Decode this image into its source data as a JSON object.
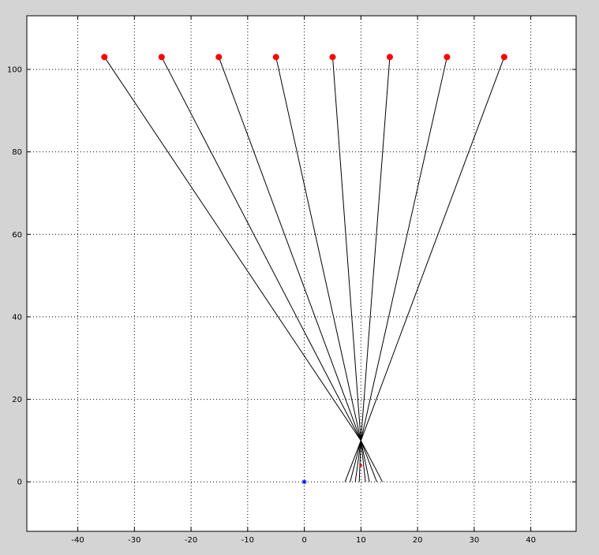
{
  "chart_data": {
    "type": "line",
    "title": "",
    "xlabel": "",
    "ylabel": "",
    "xlim": [
      -49,
      48
    ],
    "ylim": [
      -12,
      113
    ],
    "grid": true,
    "xticks": [
      -40,
      -30,
      -20,
      -10,
      0,
      10,
      20,
      30,
      40
    ],
    "yticks": [
      0,
      20,
      40,
      60,
      80,
      100
    ],
    "xtick_labels": [
      "-40",
      "-30",
      "-20",
      "-10",
      "0",
      "10",
      "20",
      "30",
      "40"
    ],
    "ytick_labels": [
      "0",
      "20",
      "40",
      "60",
      "80",
      "100"
    ],
    "series": [
      {
        "points": [
          [
            -35.3,
            103
          ],
          [
            10,
            10
          ],
          [
            13.8,
            0
          ]
        ]
      },
      {
        "points": [
          [
            -25.2,
            103
          ],
          [
            10,
            10
          ],
          [
            12.8,
            0
          ]
        ]
      },
      {
        "points": [
          [
            -15.1,
            103
          ],
          [
            10,
            10
          ],
          [
            11.5,
            0
          ]
        ]
      },
      {
        "points": [
          [
            -5.0,
            103
          ],
          [
            10,
            10
          ],
          [
            10.8,
            0
          ]
        ]
      },
      {
        "points": [
          [
            5.0,
            103
          ],
          [
            10,
            10
          ],
          [
            9.7,
            0
          ]
        ]
      },
      {
        "points": [
          [
            15.1,
            103
          ],
          [
            10,
            10
          ],
          [
            9.0,
            0
          ]
        ]
      },
      {
        "points": [
          [
            25.2,
            103
          ],
          [
            10,
            10
          ],
          [
            8.1,
            0
          ]
        ]
      },
      {
        "points": [
          [
            35.3,
            103
          ],
          [
            10,
            10
          ],
          [
            7.2,
            0
          ]
        ]
      }
    ],
    "source_markers": {
      "color": "#ff0000",
      "x": [
        -35.3,
        -25.2,
        -15.1,
        -5.0,
        5.0,
        15.1,
        25.2,
        35.3
      ],
      "y": [
        103,
        103,
        103,
        103,
        103,
        103,
        103,
        103
      ]
    },
    "target_marker": {
      "color": "#ff0000",
      "x": 10,
      "y": 4
    },
    "origin_marker": {
      "color": "#0000ff",
      "x": 0,
      "y": 0
    },
    "line_color": "#000000",
    "axes_background": "#ffffff",
    "figure_background": "#d4d4d4"
  }
}
